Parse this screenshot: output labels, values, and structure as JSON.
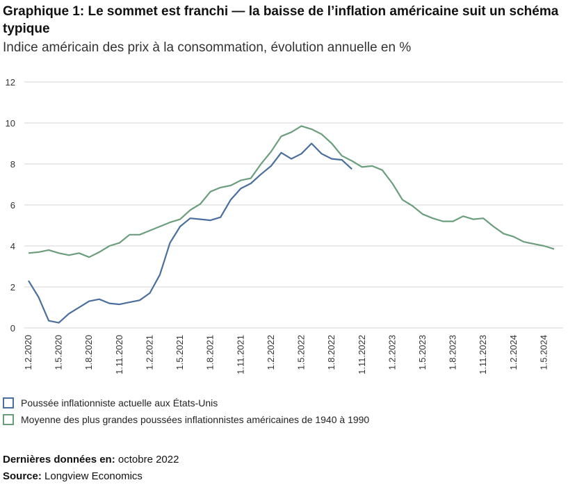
{
  "chart_data": {
    "type": "line",
    "title": "Graphique 1: Le sommet est franchi — la baisse de l’inflation américaine suit un schéma typique",
    "subtitle": "Indice américain des prix à la consommation, évolution annuelle en %",
    "categories": [
      "1.2.2020",
      null,
      null,
      "1.5.2020",
      null,
      null,
      "1.8.2020",
      null,
      null,
      "1.11.2020",
      null,
      null,
      "1.2.2021",
      null,
      null,
      "1.5.2021",
      null,
      null,
      "1.8.2021",
      null,
      null,
      "1.11.2021",
      null,
      null,
      "1.2.2022",
      null,
      null,
      "1.5.2022",
      null,
      null,
      "1.8.2022",
      null,
      null,
      "1.11.2022",
      null,
      null,
      "1.2.2023",
      null,
      null,
      "1.5.2023",
      null,
      null,
      "1.8.2023",
      null,
      null,
      "1.11.2023",
      null,
      null,
      "1.2.2024",
      null,
      null,
      "1.5.2024",
      null
    ],
    "series": [
      {
        "name": "Poussée inflationniste actuelle aux États-Unis",
        "color": "#4a6f9e",
        "values": [
          2.3,
          1.5,
          0.35,
          0.25,
          0.7,
          1.0,
          1.3,
          1.4,
          1.2,
          1.15,
          1.25,
          1.35,
          1.7,
          2.6,
          4.15,
          4.95,
          5.35,
          5.3,
          5.25,
          5.4,
          6.25,
          6.8,
          7.05,
          7.5,
          7.9,
          8.55,
          8.25,
          8.5,
          9.0,
          8.5,
          8.25,
          8.2,
          7.75,
          null,
          null,
          null,
          null,
          null,
          null,
          null,
          null,
          null,
          null,
          null,
          null,
          null,
          null,
          null,
          null,
          null,
          null,
          null,
          null
        ]
      },
      {
        "name": "Moyenne des plus grandes poussées inflationnistes américaines de 1940 à 1990",
        "color": "#6b9e7c",
        "values": [
          3.65,
          3.7,
          3.8,
          3.65,
          3.55,
          3.65,
          3.45,
          3.7,
          4.0,
          4.15,
          4.55,
          4.55,
          4.75,
          4.95,
          5.15,
          5.3,
          5.75,
          6.05,
          6.65,
          6.85,
          6.95,
          7.2,
          7.3,
          8.0,
          8.6,
          9.35,
          9.55,
          9.85,
          9.7,
          9.45,
          9.0,
          8.4,
          8.15,
          7.85,
          7.9,
          7.7,
          7.05,
          6.25,
          5.95,
          5.55,
          5.35,
          5.2,
          5.2,
          5.45,
          5.3,
          5.35,
          4.95,
          4.6,
          4.45,
          4.2,
          4.1,
          4.0,
          3.85
        ]
      }
    ],
    "ylim": [
      0,
      12
    ],
    "yticks": [
      0,
      2,
      4,
      6,
      8,
      10,
      12
    ],
    "grid": true,
    "footer": {
      "latest_label": "Dernières données en:",
      "latest_value": "octobre 2022",
      "source_label": "Source:",
      "source_value": "Longview Economics"
    }
  }
}
